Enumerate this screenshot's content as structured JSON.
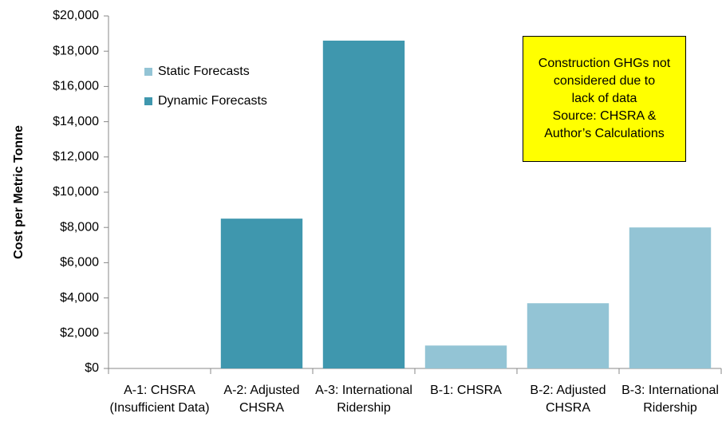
{
  "chart_data": {
    "type": "bar",
    "y_label": "Cost per Metric Tonne",
    "categories": [
      "A-1: CHSRA (Insufficient Data)",
      "A-2: Adjusted CHSRA",
      "A-3: International Ridership",
      "B-1: CHSRA",
      "B-2: Adjusted CHSRA",
      "B-3: International Ridership"
    ],
    "series": [
      {
        "name": "Static Forecasts",
        "color": "#93c4d5",
        "values": [
          null,
          null,
          null,
          1300,
          3700,
          8000
        ]
      },
      {
        "name": "Dynamic Forecasts",
        "color": "#3f97ae",
        "values": [
          null,
          8500,
          18600,
          null,
          null,
          null
        ]
      }
    ],
    "ylim": [
      0,
      20000
    ],
    "yticks": [
      {
        "value": 0,
        "label": "$0"
      },
      {
        "value": 2000,
        "label": "$2,000"
      },
      {
        "value": 4000,
        "label": "$4,000"
      },
      {
        "value": 6000,
        "label": "$6,000"
      },
      {
        "value": 8000,
        "label": "$8,000"
      },
      {
        "value": 10000,
        "label": "$10,000"
      },
      {
        "value": 12000,
        "label": "$12,000"
      },
      {
        "value": 14000,
        "label": "$14,000"
      },
      {
        "value": 16000,
        "label": "$16,000"
      },
      {
        "value": 18000,
        "label": "$18,000"
      },
      {
        "value": 20000,
        "label": "$20,000"
      }
    ],
    "annotation": [
      "Construction GHGs not",
      "considered due to",
      "lack of data",
      "Source: CHSRA &",
      "Author’s Calculations"
    ],
    "legend": "upper left"
  }
}
